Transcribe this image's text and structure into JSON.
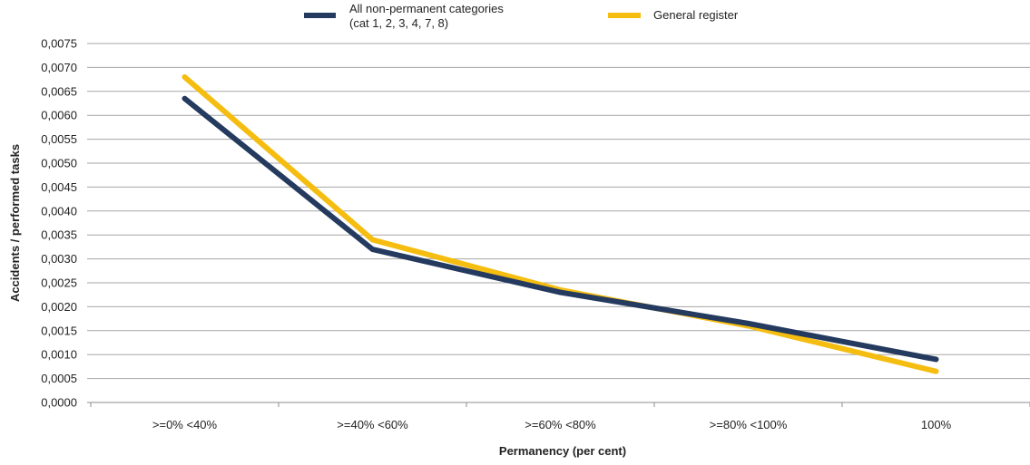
{
  "chart_data": {
    "type": "line",
    "title": "",
    "xlabel": "Permanency (per cent)",
    "ylabel": "Accidents / performed tasks",
    "categories": [
      ">=0% <40%",
      ">=40% <60%",
      ">=60% <80%",
      ">=80% <100%",
      "100%"
    ],
    "ylim": [
      0,
      0.0075
    ],
    "ytick_step": 0.0005,
    "yticks": [
      "0,0000",
      "0,0005",
      "0,0010",
      "0,0015",
      "0,0020",
      "0,0025",
      "0,0030",
      "0,0035",
      "0,0040",
      "0,0045",
      "0,0050",
      "0,0055",
      "0,0060",
      "0,0065",
      "0,0070",
      "0,0075"
    ],
    "grid": true,
    "legend_position": "top-center",
    "series": [
      {
        "name_lines": [
          "All non-permanent categories",
          "(cat 1, 2, 3, 4, 7, 8)"
        ],
        "color": "#243a5e",
        "values": [
          0.00635,
          0.0032,
          0.0023,
          0.00165,
          0.0009
        ]
      },
      {
        "name_lines": [
          "General register"
        ],
        "color": "#f5bd10",
        "values": [
          0.0068,
          0.0034,
          0.00235,
          0.0016,
          0.00065
        ]
      }
    ]
  }
}
